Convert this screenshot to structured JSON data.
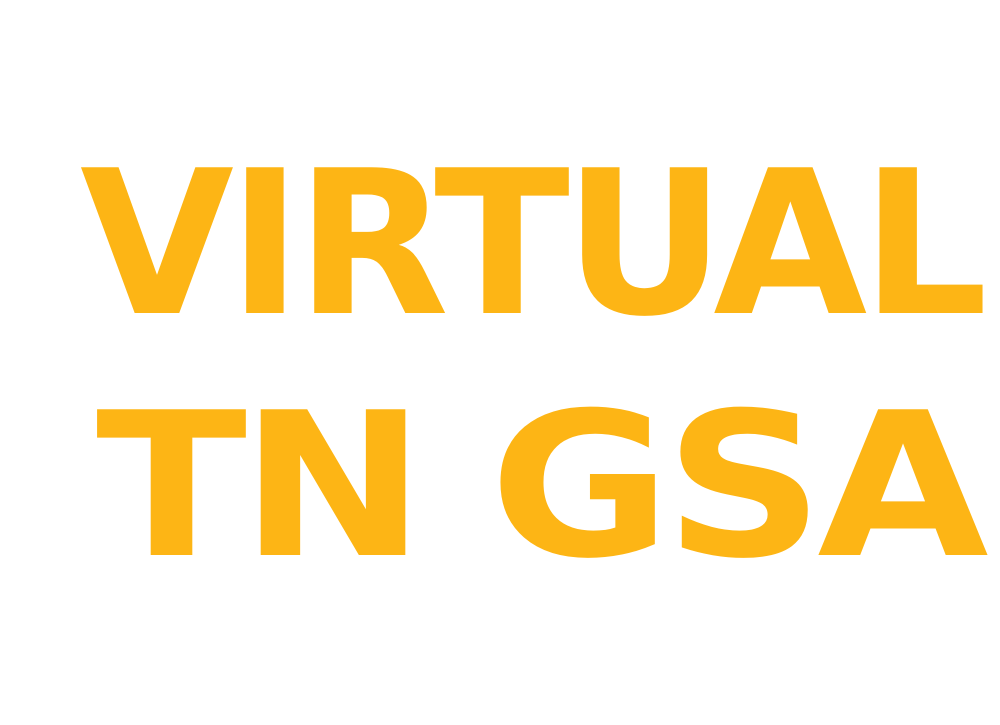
{
  "logo": {
    "line1": "VIRTUAL",
    "line2": "TN GSA",
    "color": "#FDB515",
    "background": "#FFFFFF"
  }
}
